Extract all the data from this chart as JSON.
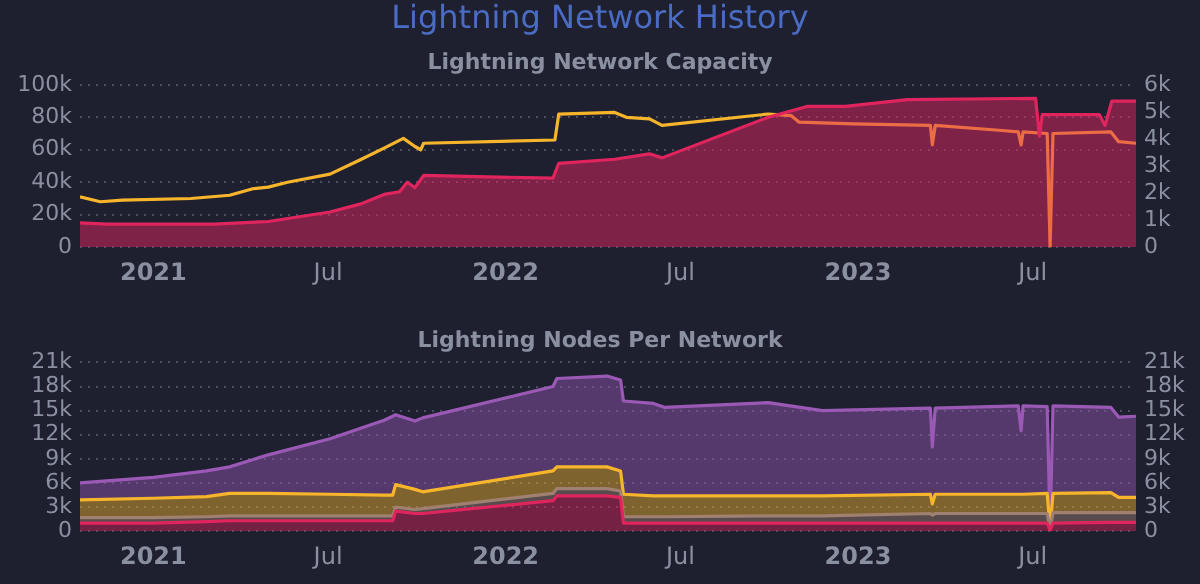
{
  "chart_data": [
    {
      "type": "area",
      "title": "Lightning Network History",
      "subtitle": "Lightning Network Capacity",
      "grid": "y",
      "marker": "none",
      "line_style": "solid",
      "xlim": [
        "2020-10-17",
        "2023-10-16"
      ],
      "xticks": [
        {
          "value": "2021-01-01",
          "label": "2021"
        },
        {
          "value": "2021-07-01",
          "label": "Jul"
        },
        {
          "value": "2022-01-01",
          "label": "2022"
        },
        {
          "value": "2022-07-01",
          "label": "Jul"
        },
        {
          "value": "2023-01-01",
          "label": "2023"
        },
        {
          "value": "2023-07-01",
          "label": "Jul"
        }
      ],
      "ylim": [
        0,
        100000
      ],
      "yticks": [
        {
          "value": 0,
          "label": "0"
        },
        {
          "value": 20000,
          "label": "20k"
        },
        {
          "value": 40000,
          "label": "40k"
        },
        {
          "value": 60000,
          "label": "60k"
        },
        {
          "value": 80000,
          "label": "80k"
        },
        {
          "value": 100000,
          "label": "100k"
        }
      ],
      "y2lim": [
        0,
        6000
      ],
      "y2ticks": [
        {
          "value": 0,
          "label": "0"
        },
        {
          "value": 1000,
          "label": "1k"
        },
        {
          "value": 2000,
          "label": "2k"
        },
        {
          "value": 3000,
          "label": "3k"
        },
        {
          "value": 4000,
          "label": "4k"
        },
        {
          "value": 5000,
          "label": "5k"
        },
        {
          "value": 6000,
          "label": "6k"
        }
      ],
      "series": [
        {
          "axis": "y2",
          "color": "#e0245e",
          "x": [
            "2020-10-17",
            "2020-11-14",
            "2021-03-05",
            "2021-04-30",
            "2021-07-03",
            "2021-08-04",
            "2021-08-28",
            "2021-09-13",
            "2021-09-21",
            "2021-09-29",
            "2021-10-08",
            "2022-02-19",
            "2022-02-25",
            "2022-04-24",
            "2022-05-30",
            "2022-06-12",
            "2022-09-30",
            "2022-11-09",
            "2022-12-19",
            "2023-02-21",
            "2023-07-04",
            "2023-07-08",
            "2023-07-11",
            "2023-09-08",
            "2023-09-14",
            "2023-09-21",
            "2023-10-16"
          ],
          "values": [
            900,
            850,
            850,
            950,
            1300,
            1600,
            1950,
            2050,
            2400,
            2200,
            2650,
            2550,
            3100,
            3250,
            3450,
            3300,
            4800,
            5200,
            5200,
            5450,
            5500,
            4100,
            4900,
            4900,
            4500,
            5400,
            5400
          ]
        },
        {
          "type": "line",
          "axis": "y",
          "color": "#f7b52c",
          "x": [
            "2020-10-17",
            "2020-11-07",
            "2020-11-30",
            "2021-02-09",
            "2021-03-21",
            "2021-04-14",
            "2021-04-30",
            "2021-05-20",
            "2021-07-03",
            "2021-08-04",
            "2021-08-28",
            "2021-09-17",
            "2021-09-29",
            "2021-10-05",
            "2021-10-08",
            "2022-02-21",
            "2022-02-25",
            "2022-04-24",
            "2022-05-06",
            "2022-05-30",
            "2022-06-12",
            "2022-09-30",
            "2022-10-24",
            "2022-11-01",
            "2022-12-27",
            "2023-03-17",
            "2023-03-19",
            "2023-03-22",
            "2023-05-27",
            "2023-06-16",
            "2023-06-19",
            "2023-06-21",
            "2023-07-16",
            "2023-07-19",
            "2023-07-22",
            "2023-09-20",
            "2023-09-28",
            "2023-10-16"
          ],
          "values": [
            31000,
            28000,
            29000,
            30000,
            32000,
            36000,
            37000,
            40000,
            45000,
            54000,
            61000,
            67000,
            62000,
            60000,
            64000,
            66000,
            82000,
            83000,
            80000,
            79000,
            75000,
            82000,
            81000,
            77000,
            76000,
            75000,
            63000,
            75000,
            72000,
            71000,
            63000,
            71000,
            70000,
            0,
            70000,
            71000,
            65000,
            64000
          ]
        }
      ]
    },
    {
      "type": "area",
      "title": "Lightning Nodes Per Network",
      "stacked": true,
      "grid": "y",
      "marker": "none",
      "line_style": "solid",
      "xlim": [
        "2020-10-17",
        "2023-10-16"
      ],
      "xticks": [
        {
          "value": "2021-01-01",
          "label": "2021"
        },
        {
          "value": "2021-07-01",
          "label": "Jul"
        },
        {
          "value": "2022-01-01",
          "label": "2022"
        },
        {
          "value": "2022-07-01",
          "label": "Jul"
        },
        {
          "value": "2023-01-01",
          "label": "2023"
        },
        {
          "value": "2023-07-01",
          "label": "Jul"
        }
      ],
      "ylim": [
        0,
        21000
      ],
      "yticks": [
        {
          "value": 0,
          "label": "0"
        },
        {
          "value": 3000,
          "label": "3k"
        },
        {
          "value": 6000,
          "label": "6k"
        },
        {
          "value": 9000,
          "label": "9k"
        },
        {
          "value": 12000,
          "label": "12k"
        },
        {
          "value": 15000,
          "label": "15k"
        },
        {
          "value": 18000,
          "label": "18k"
        },
        {
          "value": 21000,
          "label": "21k"
        }
      ],
      "y2lim": [
        0,
        21000
      ],
      "y2ticks": [
        {
          "value": 0,
          "label": "0"
        },
        {
          "value": 3000,
          "label": "3k"
        },
        {
          "value": 6000,
          "label": "6k"
        },
        {
          "value": 9000,
          "label": "9k"
        },
        {
          "value": 12000,
          "label": "12k"
        },
        {
          "value": 15000,
          "label": "15k"
        },
        {
          "value": 18000,
          "label": "18k"
        },
        {
          "value": 21000,
          "label": "21k"
        }
      ],
      "x": [
        "2020-10-17",
        "2021-01-01",
        "2021-02-25",
        "2021-03-21",
        "2021-04-30",
        "2021-07-03",
        "2021-08-28",
        "2021-09-06",
        "2021-09-09",
        "2021-09-29",
        "2021-10-07",
        "2022-02-19",
        "2022-02-23",
        "2022-04-16",
        "2022-04-30",
        "2022-05-03",
        "2022-06-03",
        "2022-06-15",
        "2022-09-30",
        "2022-11-25",
        "2023-03-17",
        "2023-03-19",
        "2023-03-22",
        "2023-06-16",
        "2023-06-19",
        "2023-06-21",
        "2023-07-16",
        "2023-07-19",
        "2023-07-22",
        "2023-09-20",
        "2023-09-28",
        "2023-10-16"
      ],
      "series": [
        {
          "color": "#e0245e",
          "values": [
            1000,
            1000,
            1200,
            1300,
            1300,
            1300,
            1300,
            1300,
            2500,
            2200,
            2200,
            3800,
            4400,
            4400,
            4200,
            1000,
            1000,
            1000,
            1000,
            1000,
            1000,
            1000,
            1000,
            1000,
            1000,
            1000,
            1000,
            100,
            1000,
            1100,
            1100,
            1100
          ]
        },
        {
          "color": "#a08070",
          "values": [
            700,
            700,
            600,
            600,
            600,
            600,
            600,
            600,
            500,
            500,
            600,
            900,
            900,
            900,
            800,
            800,
            800,
            800,
            900,
            900,
            1200,
            1000,
            1200,
            1200,
            1200,
            1200,
            1200,
            100,
            1300,
            1200,
            1200,
            1200
          ]
        },
        {
          "color": "#f7b52c",
          "values": [
            2200,
            2400,
            2500,
            2800,
            2800,
            2700,
            2600,
            2600,
            2800,
            2500,
            2100,
            2800,
            2700,
            2700,
            2500,
            2800,
            2600,
            2600,
            2500,
            2500,
            2400,
            1400,
            2400,
            2400,
            2400,
            2400,
            2500,
            100,
            2400,
            2500,
            1900,
            1900
          ]
        },
        {
          "color": "#9b59b6",
          "values": [
            2100,
            2600,
            3200,
            3300,
            4800,
            6900,
            9300,
            9800,
            8700,
            8500,
            9200,
            10500,
            11000,
            11300,
            11300,
            11600,
            11500,
            11000,
            11600,
            10600,
            10700,
            7100,
            10700,
            11000,
            7900,
            11000,
            10800,
            100,
            10900,
            10600,
            10000,
            10100
          ]
        }
      ]
    }
  ]
}
